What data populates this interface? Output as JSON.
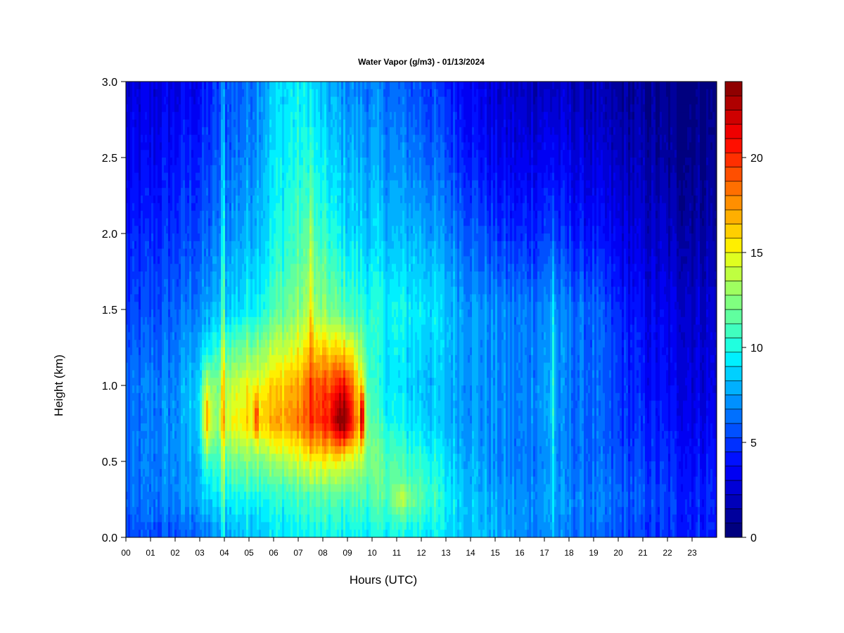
{
  "chart_data": {
    "type": "heatmap",
    "title": "Water Vapor (g/m3) - 01/13/2024",
    "xlabel": "Hours (UTC)",
    "ylabel": "Height (km)",
    "x_ticks": [
      "00",
      "01",
      "02",
      "03",
      "04",
      "05",
      "06",
      "07",
      "08",
      "09",
      "10",
      "11",
      "12",
      "13",
      "14",
      "15",
      "16",
      "17",
      "18",
      "19",
      "20",
      "21",
      "22",
      "23"
    ],
    "xlim": [
      0,
      24
    ],
    "y_ticks": [
      "0.0",
      "0.5",
      "1.0",
      "1.5",
      "2.0",
      "2.5",
      "3.0"
    ],
    "y_tick_values": [
      0,
      0.5,
      1.0,
      1.5,
      2.0,
      2.5,
      3.0
    ],
    "ylim": [
      0,
      3.0
    ],
    "colorbar": {
      "range": [
        0,
        24
      ],
      "step": 1,
      "tick_values": [
        0,
        5,
        10,
        15,
        20
      ],
      "tick_labels": [
        "0",
        "5",
        "10",
        "15",
        "20"
      ],
      "colors": [
        "#00007f",
        "#00009c",
        "#0000b9",
        "#0000d6",
        "#0000f3",
        "#0010ff",
        "#0030ff",
        "#0050ff",
        "#0070ff",
        "#0090ff",
        "#00b0ff",
        "#00d0ff",
        "#00f0ff",
        "#20ffdf",
        "#40ffbf",
        "#60ff9f",
        "#80ff80",
        "#9fff60",
        "#bfff40",
        "#dfff20",
        "#ffef00",
        "#ffcf00",
        "#ffaf00",
        "#ff8f00",
        "#ff6f00",
        "#ff4f00",
        "#ff2f00",
        "#ff0f00",
        "#ef0000",
        "#cf0000",
        "#af0000",
        "#8f0000"
      ]
    },
    "hour_profiles": {
      "hours": [
        0,
        1,
        2,
        3,
        4,
        5,
        6,
        7,
        8,
        9,
        10,
        11,
        12,
        13,
        14,
        15,
        16,
        17,
        18,
        19,
        20,
        21,
        22,
        23,
        24
      ],
      "heights_km": [
        0,
        0.25,
        0.5,
        0.75,
        1.0,
        1.5,
        2.0,
        2.5,
        3.0
      ],
      "values": [
        [
          5.0,
          6.0,
          6.0,
          6.0,
          6.0,
          5.0,
          4.0,
          3.0,
          2.5
        ],
        [
          5.5,
          6.5,
          6.5,
          6.5,
          6.5,
          5.5,
          4.5,
          3.5,
          2.8
        ],
        [
          5.5,
          7.0,
          7.0,
          7.0,
          7.0,
          6.0,
          5.0,
          4.0,
          3.0
        ],
        [
          6.0,
          8.0,
          8.0,
          9.0,
          9.0,
          7.0,
          5.5,
          4.5,
          3.5
        ],
        [
          7.5,
          9.5,
          11.5,
          14.5,
          13.5,
          8.5,
          7.0,
          6.0,
          5.5
        ],
        [
          8.5,
          10.0,
          12.5,
          16.0,
          15.0,
          9.5,
          8.0,
          7.0,
          6.5
        ],
        [
          9.0,
          10.0,
          13.0,
          17.0,
          16.0,
          11.0,
          9.5,
          9.0,
          8.5
        ],
        [
          9.5,
          10.5,
          14.0,
          18.0,
          17.0,
          12.5,
          11.0,
          10.0,
          9.5
        ],
        [
          9.5,
          11.0,
          15.0,
          20.0,
          19.0,
          12.5,
          10.5,
          9.0,
          8.0
        ],
        [
          9.5,
          11.0,
          14.5,
          21.5,
          20.0,
          11.0,
          9.0,
          8.0,
          7.0
        ],
        [
          9.5,
          11.0,
          12.0,
          11.0,
          10.0,
          10.0,
          8.5,
          7.5,
          6.5
        ],
        [
          9.5,
          11.5,
          11.0,
          9.5,
          9.0,
          9.5,
          8.0,
          7.0,
          6.0
        ],
        [
          9.5,
          11.5,
          10.5,
          9.0,
          8.5,
          9.5,
          8.0,
          6.5,
          5.5
        ],
        [
          9.0,
          9.5,
          9.0,
          8.0,
          8.0,
          8.5,
          7.0,
          5.5,
          4.5
        ],
        [
          8.5,
          8.5,
          8.0,
          7.5,
          7.5,
          7.5,
          6.0,
          4.5,
          3.5
        ],
        [
          8.0,
          7.5,
          7.0,
          7.0,
          7.0,
          7.0,
          5.0,
          3.5,
          2.5
        ],
        [
          7.0,
          7.0,
          6.5,
          6.5,
          6.5,
          6.5,
          4.5,
          3.0,
          2.0
        ],
        [
          7.0,
          7.5,
          7.0,
          7.5,
          7.5,
          7.0,
          5.0,
          3.5,
          2.0
        ],
        [
          6.5,
          7.0,
          6.5,
          6.5,
          6.5,
          6.5,
          4.5,
          3.0,
          2.0
        ],
        [
          6.0,
          6.5,
          6.0,
          6.0,
          6.0,
          6.0,
          4.0,
          2.5,
          1.5
        ],
        [
          5.5,
          6.0,
          5.5,
          5.0,
          5.0,
          4.5,
          3.0,
          2.0,
          1.0
        ],
        [
          5.0,
          5.5,
          5.0,
          4.5,
          4.0,
          3.5,
          2.5,
          1.5,
          0.8
        ],
        [
          4.5,
          5.0,
          4.5,
          4.0,
          3.5,
          3.0,
          2.0,
          1.0,
          0.5
        ],
        [
          4.5,
          4.5,
          4.0,
          3.5,
          3.0,
          2.5,
          1.5,
          0.8,
          0.4
        ],
        [
          4.5,
          4.5,
          4.0,
          3.5,
          3.0,
          2.5,
          1.5,
          0.8,
          0.4
        ]
      ]
    },
    "features": [
      {
        "hour": 3.3,
        "width_h": 0.18,
        "height_km": 0.8,
        "spread_km": 0.3,
        "amp": 6
      },
      {
        "hour": 3.95,
        "width_h": 0.06,
        "height_km": 1.5,
        "spread_km": 2.0,
        "amp": 4
      },
      {
        "hour": 5.3,
        "width_h": 0.08,
        "height_km": 0.8,
        "spread_km": 0.15,
        "amp": 4
      },
      {
        "hour": 7.5,
        "width_h": 0.12,
        "height_km": 1.6,
        "spread_km": 1.0,
        "amp": 3
      },
      {
        "hour": 8.8,
        "width_h": 0.35,
        "height_km": 0.8,
        "spread_km": 0.2,
        "amp": 3
      },
      {
        "hour": 9.6,
        "width_h": 0.07,
        "height_km": 0.8,
        "spread_km": 0.2,
        "amp": 9
      },
      {
        "hour": 11.2,
        "width_h": 0.4,
        "height_km": 0.25,
        "spread_km": 0.1,
        "amp": 2
      },
      {
        "hour": 17.35,
        "width_h": 0.08,
        "height_km": 1.0,
        "spread_km": 1.2,
        "amp": 3.5
      }
    ]
  }
}
